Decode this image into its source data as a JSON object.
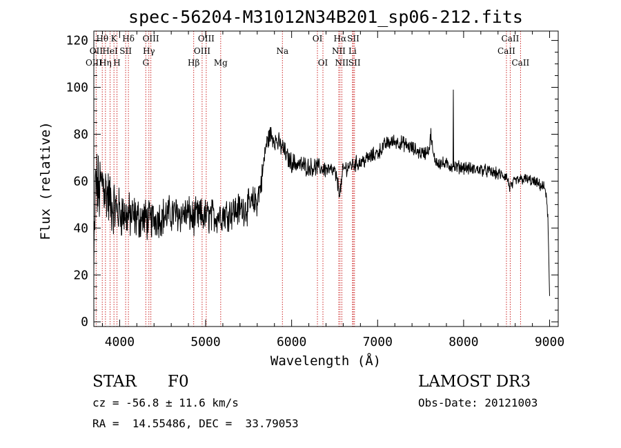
{
  "chart_data": {
    "type": "line",
    "title": "spec-56204-M31012N34B201_sp06-212.fits",
    "xlabel": "Wavelength (Å)",
    "ylabel": "Flux (relative)",
    "xlim": [
      3700,
      9100
    ],
    "ylim": [
      -2,
      124
    ],
    "xticks": [
      4000,
      5000,
      6000,
      7000,
      8000,
      9000
    ],
    "yticks": [
      0,
      20,
      40,
      60,
      80,
      100,
      120
    ],
    "grid": false,
    "series": [
      {
        "name": "spectrum",
        "anchors_x": [
          3700,
          3720,
          3760,
          3800,
          3850,
          3900,
          3950,
          4000,
          4050,
          4100,
          4150,
          4200,
          4250,
          4300,
          4350,
          4400,
          4500,
          4600,
          4700,
          4800,
          4860,
          4900,
          5000,
          5100,
          5200,
          5300,
          5400,
          5500,
          5600,
          5650,
          5700,
          5750,
          5800,
          5850,
          5900,
          5950,
          6000,
          6100,
          6200,
          6300,
          6400,
          6500,
          6563,
          6600,
          6700,
          6800,
          6900,
          7000,
          7100,
          7200,
          7300,
          7400,
          7500,
          7550,
          7600,
          7620,
          7650,
          7700,
          7800,
          7900,
          8000,
          8100,
          8200,
          8300,
          8400,
          8500,
          8540,
          8600,
          8700,
          8800,
          8900,
          8950,
          8980,
          9000
        ],
        "anchors_y": [
          20,
          60,
          55,
          60,
          55,
          50,
          48,
          47,
          46,
          45,
          45,
          44,
          44,
          44,
          43,
          44,
          45,
          46,
          46,
          46,
          44,
          45,
          45,
          45,
          46,
          47,
          48,
          49,
          52,
          60,
          75,
          80,
          78,
          76,
          74,
          70,
          68,
          67,
          66,
          66,
          65,
          64,
          55,
          65,
          67,
          68,
          70,
          72,
          76,
          77,
          76,
          74,
          72,
          72,
          74,
          80,
          70,
          68,
          67,
          66,
          66,
          65,
          65,
          64,
          63,
          62,
          57,
          60,
          61,
          60,
          58,
          57,
          45,
          10
        ],
        "noise_amplitude_by_wavelength": [
          [
            3700,
            14
          ],
          [
            4000,
            9
          ],
          [
            4400,
            7
          ],
          [
            5600,
            6
          ],
          [
            5700,
            4
          ],
          [
            6500,
            3
          ],
          [
            9000,
            2
          ]
        ],
        "spike": {
          "x": 7880,
          "y": 99
        }
      }
    ],
    "spectral_lines": [
      {
        "label": "Hθ",
        "x": 3798,
        "row": 0
      },
      {
        "label": "OII",
        "x": 3727,
        "row": 1
      },
      {
        "label": "OIII",
        "x": 3700,
        "row": 2
      },
      {
        "label": "Hη",
        "x": 3835,
        "row": 2
      },
      {
        "label": "K",
        "x": 3934,
        "row": 0
      },
      {
        "label": "HeI",
        "x": 3889,
        "row": 1
      },
      {
        "label": "H",
        "x": 3969,
        "row": 2
      },
      {
        "label": "Hδ",
        "x": 4102,
        "row": 0
      },
      {
        "label": "SII",
        "x": 4070,
        "row": 1
      },
      {
        "label": "OIII",
        "x": 4363,
        "row": 0
      },
      {
        "label": "Hγ",
        "x": 4340,
        "row": 1
      },
      {
        "label": "G",
        "x": 4304,
        "row": 2
      },
      {
        "label": "OIII",
        "x": 5007,
        "row": 0
      },
      {
        "label": "OIII",
        "x": 4959,
        "row": 1
      },
      {
        "label": "Hβ",
        "x": 4861,
        "row": 2
      },
      {
        "label": "Mg",
        "x": 5175,
        "row": 2
      },
      {
        "label": "Na",
        "x": 5893,
        "row": 1
      },
      {
        "label": "OI",
        "x": 6300,
        "row": 0
      },
      {
        "label": "OI",
        "x": 6364,
        "row": 2
      },
      {
        "label": "Hα",
        "x": 6563,
        "row": 0
      },
      {
        "label": "SII",
        "x": 6717,
        "row": 0
      },
      {
        "label": "NII",
        "x": 6548,
        "row": 1
      },
      {
        "label": "Li",
        "x": 6708,
        "row": 1
      },
      {
        "label": "NII",
        "x": 6584,
        "row": 2
      },
      {
        "label": "SII",
        "x": 6731,
        "row": 2
      },
      {
        "label": "CaII",
        "x": 8542,
        "row": 0
      },
      {
        "label": "CaII",
        "x": 8498,
        "row": 1
      },
      {
        "label": "CaII",
        "x": 8662,
        "row": 2
      }
    ],
    "line_color": "#000000",
    "marker_color": "#cc2222"
  },
  "footer": {
    "object_type": "STAR",
    "subclass": "F0",
    "survey": "LAMOST DR3",
    "cz": "cz = -56.8 ± 11.6 km/s",
    "obs_date": "Obs-Date: 20121003",
    "coords": "RA =  14.55486, DEC =  33.79053"
  }
}
